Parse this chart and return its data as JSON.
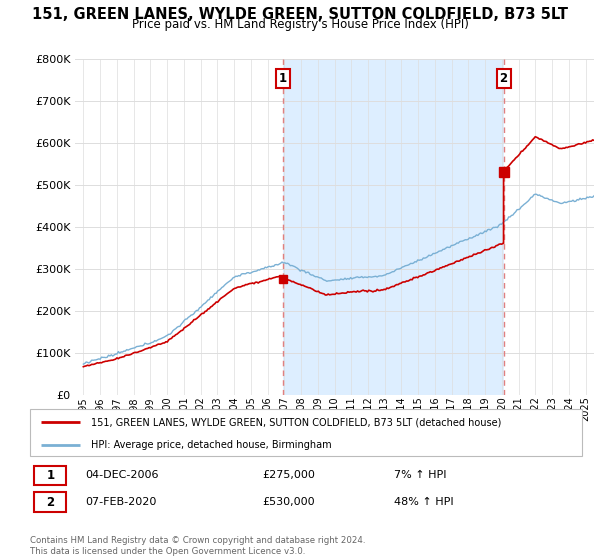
{
  "title": "151, GREEN LANES, WYLDE GREEN, SUTTON COLDFIELD, B73 5LT",
  "subtitle": "Price paid vs. HM Land Registry's House Price Index (HPI)",
  "legend_label_red": "151, GREEN LANES, WYLDE GREEN, SUTTON COLDFIELD, B73 5LT (detached house)",
  "legend_label_blue": "HPI: Average price, detached house, Birmingham",
  "transaction1": {
    "label": "1",
    "date": "04-DEC-2006",
    "price": "£275,000",
    "pct": "7% ↑ HPI",
    "x_year": 2006.92
  },
  "transaction2": {
    "label": "2",
    "date": "07-FEB-2020",
    "price": "£530,000",
    "pct": "48% ↑ HPI",
    "x_year": 2020.1
  },
  "footer": "Contains HM Land Registry data © Crown copyright and database right 2024.\nThis data is licensed under the Open Government Licence v3.0.",
  "ylim": [
    0,
    800000
  ],
  "yticks": [
    0,
    100000,
    200000,
    300000,
    400000,
    500000,
    600000,
    700000,
    800000
  ],
  "xlim_start": 1994.5,
  "xlim_end": 2025.5,
  "background_color": "#ffffff",
  "plot_bg_color": "#ffffff",
  "grid_color": "#dddddd",
  "red_color": "#cc0000",
  "blue_color": "#7ab0d4",
  "dashed_color": "#e08080",
  "shade_color": "#ddeeff"
}
